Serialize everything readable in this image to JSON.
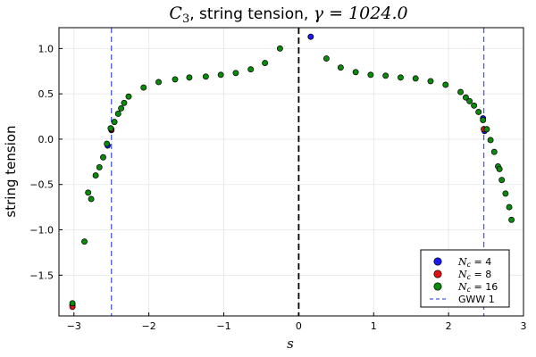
{
  "chart_data": {
    "type": "scatter",
    "title": "C_3, string tension, γ = 1024.0",
    "title_parts": {
      "symbol": "C",
      "sub": "3",
      "mid": ", string tension, ",
      "gamma": "γ = 1024.0"
    },
    "xlabel": "s",
    "ylabel": "string tension",
    "xlim": [
      -3.2,
      3.0
    ],
    "ylim": [
      -1.95,
      1.23
    ],
    "x_ticks": [
      -3,
      -2,
      -1,
      0,
      1,
      2,
      3
    ],
    "x_tick_labels": [
      "−3",
      "−2",
      "−1",
      "0",
      "1",
      "2",
      "3"
    ],
    "y_ticks": [
      -1.5,
      -1.0,
      -0.5,
      0.0,
      0.5,
      1.0
    ],
    "y_tick_labels": [
      "−1.5",
      "−1.0",
      "−0.5",
      "0.0",
      "0.5",
      "1.0"
    ],
    "grid": true,
    "legend_position": "bottom-right",
    "series": [
      {
        "name": "N_c = 4",
        "label_sym": "N",
        "label_sub": "c",
        "label_val": " = 4",
        "color": "#1a1aee",
        "points": [
          [
            -3.02,
            -1.83
          ],
          [
            -2.5,
            0.1
          ],
          [
            -2.55,
            -0.07
          ],
          [
            0.16,
            1.13
          ],
          [
            2.46,
            0.23
          ],
          [
            2.48,
            0.09
          ]
        ]
      },
      {
        "name": "N_c = 8",
        "label_sym": "N",
        "label_sub": "c",
        "label_val": " = 8",
        "color": "#dd1111",
        "points": [
          [
            -3.02,
            -1.85
          ],
          [
            -2.5,
            0.11
          ],
          [
            2.47,
            0.11
          ]
        ]
      },
      {
        "name": "N_c = 16",
        "label_sym": "N",
        "label_sub": "c",
        "label_val": " = 16",
        "color": "#0a8a0a",
        "points": [
          [
            -3.02,
            -1.81
          ],
          [
            -2.86,
            -1.13
          ],
          [
            -2.81,
            -0.59
          ],
          [
            -2.77,
            -0.66
          ],
          [
            -2.71,
            -0.4
          ],
          [
            -2.66,
            -0.31
          ],
          [
            -2.61,
            -0.2
          ],
          [
            -2.56,
            -0.05
          ],
          [
            -2.51,
            0.12
          ],
          [
            -2.46,
            0.19
          ],
          [
            -2.41,
            0.28
          ],
          [
            -2.37,
            0.34
          ],
          [
            -2.33,
            0.4
          ],
          [
            -2.27,
            0.47
          ],
          [
            -2.07,
            0.57
          ],
          [
            -1.87,
            0.63
          ],
          [
            -1.65,
            0.66
          ],
          [
            -1.46,
            0.68
          ],
          [
            -1.24,
            0.69
          ],
          [
            -1.04,
            0.71
          ],
          [
            -0.84,
            0.73
          ],
          [
            -0.64,
            0.77
          ],
          [
            -0.45,
            0.84
          ],
          [
            -0.25,
            1.0
          ],
          [
            0.37,
            0.89
          ],
          [
            0.56,
            0.79
          ],
          [
            0.76,
            0.74
          ],
          [
            0.96,
            0.71
          ],
          [
            1.16,
            0.7
          ],
          [
            1.36,
            0.68
          ],
          [
            1.56,
            0.67
          ],
          [
            1.76,
            0.64
          ],
          [
            1.96,
            0.6
          ],
          [
            2.16,
            0.52
          ],
          [
            2.23,
            0.46
          ],
          [
            2.28,
            0.42
          ],
          [
            2.34,
            0.37
          ],
          [
            2.4,
            0.3
          ],
          [
            2.46,
            0.21
          ],
          [
            2.51,
            0.11
          ],
          [
            2.56,
            -0.01
          ],
          [
            2.61,
            -0.14
          ],
          [
            2.66,
            -0.3
          ],
          [
            2.68,
            -0.33
          ],
          [
            2.71,
            -0.45
          ],
          [
            2.76,
            -0.6
          ],
          [
            2.81,
            -0.75
          ],
          [
            2.84,
            -0.89
          ]
        ]
      }
    ],
    "reference_lines": [
      {
        "name": "GWW 1",
        "x": -2.5,
        "color": "#4a5ae0",
        "style": "dashed",
        "in_legend": true
      },
      {
        "name": "GWW 1",
        "x": 2.47,
        "color": "#4a5ae0",
        "style": "dashed",
        "in_legend": false
      },
      {
        "name": "",
        "x": 0.0,
        "color": "#000000",
        "style": "dashed",
        "in_legend": false
      }
    ]
  }
}
